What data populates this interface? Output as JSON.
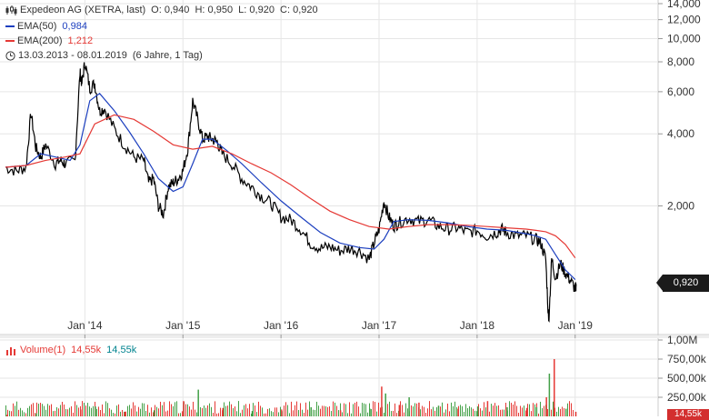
{
  "header": {
    "instrument": "Expedeon AG (XETRA, last)",
    "ohlc": "O: 0,940  H: 0,950  L: 0,920  C: 0,920",
    "ema50_label": "EMA(50)",
    "ema50_value": "0,984",
    "ema200_label": "EMA(200)",
    "ema200_value": "1,212",
    "range_text": "13.03.2013 - 08.01.2019",
    "range_span": "(6 Jahre, 1 Tag)"
  },
  "colors": {
    "price": "#000000",
    "ema50": "#1c3fbf",
    "ema200": "#e53935",
    "volume_up": "#43a047",
    "volume_down": "#e53935",
    "volume_value_alt": "#00838f",
    "grid": "#e6e6e6"
  },
  "icons": [
    "candlestick-icon",
    "clock-icon"
  ],
  "last_price_label": "0,920",
  "volume_panel": {
    "label": "Volume(1)",
    "value_red": "14,55k",
    "value_teal": "14,55k",
    "tick_labels": [
      "1,00M",
      "750,00k",
      "500,00k",
      "250,00k"
    ],
    "tick_values": [
      1000000,
      750000,
      500000,
      250000
    ],
    "last_label": "14,55k"
  },
  "chart_data": {
    "type": "line",
    "yscale": "log",
    "ylim": [
      0.58,
      14.5
    ],
    "x_tick_labels": [
      "Jan '14",
      "Jan '15",
      "Jan '16",
      "Jan '17",
      "Jan '18",
      "Jan '19"
    ],
    "x_ticks": [
      2014.0,
      2015.0,
      2016.0,
      2017.0,
      2018.0,
      2019.0
    ],
    "x_range": [
      2013.19,
      2019.03
    ],
    "y_tick_labels": [
      "14,000",
      "12,000",
      "10,000",
      "8,000",
      "6,000",
      "4,000",
      "2,000"
    ],
    "y_ticks": [
      14,
      12,
      10,
      8,
      6,
      4,
      2
    ],
    "series": [
      {
        "name": "Expedeon AG",
        "x": [
          2013.19,
          2013.3,
          2013.4,
          2013.45,
          2013.5,
          2013.55,
          2013.6,
          2013.7,
          2013.75,
          2013.8,
          2013.9,
          2013.95,
          2013.97,
          2014.0,
          2014.05,
          2014.1,
          2014.15,
          2014.2,
          2014.3,
          2014.4,
          2014.5,
          2014.6,
          2014.65,
          2014.7,
          2014.75,
          2014.8,
          2014.85,
          2014.9,
          2014.95,
          2015.0,
          2015.05,
          2015.1,
          2015.15,
          2015.2,
          2015.25,
          2015.3,
          2015.35,
          2015.4,
          2015.5,
          2015.6,
          2015.7,
          2015.8,
          2015.9,
          2016.0,
          2016.1,
          2016.2,
          2016.3,
          2016.4,
          2016.5,
          2016.6,
          2016.7,
          2016.8,
          2016.9,
          2016.95,
          2017.0,
          2017.05,
          2017.1,
          2017.15,
          2017.2,
          2017.3,
          2017.4,
          2017.5,
          2017.6,
          2017.7,
          2017.8,
          2017.9,
          2018.0,
          2018.1,
          2018.2,
          2018.25,
          2018.3,
          2018.4,
          2018.5,
          2018.6,
          2018.65,
          2018.7,
          2018.73,
          2018.76,
          2018.8,
          2018.85,
          2018.9,
          2018.95,
          2019.0,
          2019.01
        ],
        "values": [
          2.9,
          2.8,
          2.9,
          4.9,
          3.5,
          3.2,
          3.6,
          3.0,
          3.1,
          3.0,
          3.1,
          7.2,
          6.5,
          8.0,
          6.2,
          6.5,
          5.0,
          5.1,
          4.2,
          3.6,
          3.2,
          3.1,
          2.5,
          2.6,
          2.0,
          1.85,
          2.4,
          2.5,
          2.6,
          2.8,
          3.5,
          5.5,
          4.6,
          3.8,
          3.9,
          3.8,
          3.7,
          3.3,
          3.0,
          2.6,
          2.4,
          2.2,
          2.05,
          1.8,
          1.75,
          1.6,
          1.4,
          1.33,
          1.35,
          1.3,
          1.33,
          1.3,
          1.2,
          1.4,
          1.6,
          2.1,
          1.8,
          1.65,
          1.7,
          1.78,
          1.72,
          1.75,
          1.65,
          1.6,
          1.62,
          1.55,
          1.58,
          1.5,
          1.55,
          1.6,
          1.55,
          1.5,
          1.5,
          1.45,
          1.4,
          1.2,
          0.65,
          1.2,
          1.0,
          1.15,
          1.05,
          0.98,
          0.9,
          0.92
        ]
      },
      {
        "name": "EMA(50)",
        "x": [
          2013.19,
          2013.4,
          2013.55,
          2013.7,
          2013.85,
          2013.95,
          2014.05,
          2014.15,
          2014.3,
          2014.45,
          2014.6,
          2014.75,
          2014.9,
          2015.0,
          2015.1,
          2015.2,
          2015.3,
          2015.45,
          2015.6,
          2015.8,
          2016.0,
          2016.2,
          2016.4,
          2016.6,
          2016.8,
          2016.95,
          2017.05,
          2017.15,
          2017.3,
          2017.5,
          2017.7,
          2017.9,
          2018.1,
          2018.3,
          2018.5,
          2018.6,
          2018.7,
          2018.8,
          2018.9,
          2019.0
        ],
        "values": [
          2.9,
          2.95,
          3.3,
          3.2,
          3.1,
          3.6,
          5.5,
          5.9,
          5.0,
          4.1,
          3.3,
          2.6,
          2.3,
          2.4,
          3.0,
          3.8,
          3.8,
          3.4,
          3.0,
          2.5,
          2.1,
          1.8,
          1.55,
          1.4,
          1.34,
          1.32,
          1.45,
          1.72,
          1.75,
          1.74,
          1.7,
          1.64,
          1.6,
          1.58,
          1.53,
          1.5,
          1.45,
          1.25,
          1.08,
          0.984
        ]
      },
      {
        "name": "EMA(200)",
        "x": [
          2013.19,
          2013.4,
          2013.6,
          2013.8,
          2013.95,
          2014.1,
          2014.3,
          2014.5,
          2014.7,
          2014.9,
          2015.1,
          2015.3,
          2015.5,
          2015.7,
          2015.9,
          2016.1,
          2016.3,
          2016.5,
          2016.7,
          2016.9,
          2017.1,
          2017.3,
          2017.5,
          2017.7,
          2017.9,
          2018.1,
          2018.3,
          2018.5,
          2018.6,
          2018.7,
          2018.8,
          2018.9,
          2019.0
        ],
        "values": [
          2.9,
          2.95,
          3.1,
          3.2,
          3.3,
          4.4,
          4.8,
          4.6,
          4.1,
          3.6,
          3.45,
          3.55,
          3.3,
          3.0,
          2.75,
          2.45,
          2.15,
          1.9,
          1.75,
          1.64,
          1.6,
          1.64,
          1.67,
          1.67,
          1.66,
          1.64,
          1.62,
          1.6,
          1.58,
          1.56,
          1.5,
          1.38,
          1.212
        ]
      }
    ],
    "volume": {
      "x": [
        2013.2,
        2013.5,
        2013.95,
        2014.1,
        2014.4,
        2014.7,
        2015.0,
        2015.15,
        2015.4,
        2015.7,
        2016.0,
        2016.3,
        2016.6,
        2016.9,
        2017.02,
        2017.06,
        2017.2,
        2017.3,
        2017.4,
        2017.6,
        2017.8,
        2018.0,
        2018.1,
        2018.3,
        2018.5,
        2018.6,
        2018.7,
        2018.73,
        2018.78,
        2018.9,
        2019.0
      ],
      "values": [
        20000,
        40000,
        90000,
        130000,
        60000,
        80000,
        200000,
        350000,
        110000,
        70000,
        90000,
        120000,
        80000,
        100000,
        390000,
        300000,
        150000,
        250000,
        180000,
        140000,
        100000,
        130000,
        200000,
        120000,
        110000,
        120000,
        250000,
        560000,
        750000,
        100000,
        60000
      ]
    }
  }
}
